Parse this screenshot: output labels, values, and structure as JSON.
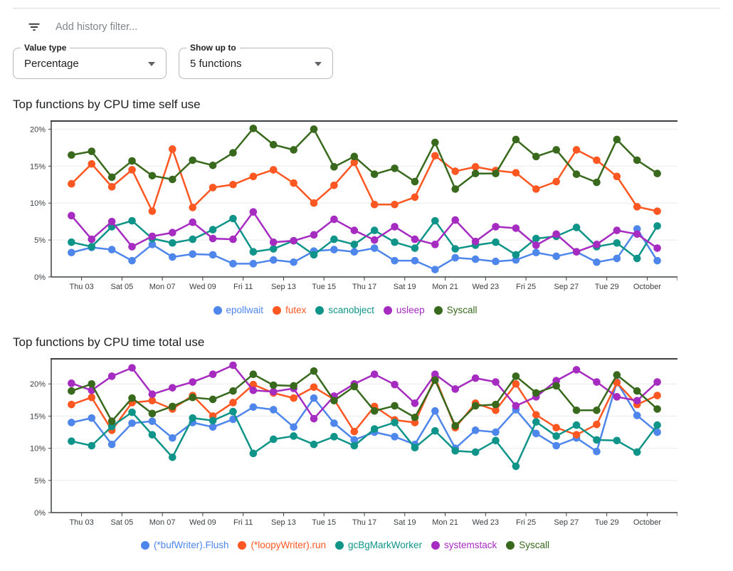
{
  "header": {
    "filter_placeholder": "Add history filter..."
  },
  "controls": {
    "value_type": {
      "label": "Value type",
      "value": "Percentage"
    },
    "show_up_to": {
      "label": "Show up to",
      "value": "5 functions"
    }
  },
  "chart_data": [
    {
      "type": "line",
      "title": "Top functions by CPU time self use",
      "xlabel": "",
      "ylabel": "",
      "grid": true,
      "legend_position": "bottom",
      "n_points": 30,
      "x_tick_labels": [
        "Thu 03",
        "Sat 05",
        "Mon 07",
        "Wed 09",
        "Fri 11",
        "Sep 13",
        "Tue 15",
        "Thu 17",
        "Sat 19",
        "Mon 21",
        "Wed 23",
        "Fri 25",
        "Sep 27",
        "Tue 29",
        "October"
      ],
      "yticks": [
        0,
        5,
        10,
        15,
        20
      ],
      "ytick_labels": [
        "0%",
        "5%",
        "10%",
        "15%",
        "20%"
      ],
      "ylim": [
        0,
        21.1
      ],
      "series": [
        {
          "name": "epollwait",
          "color": "#4e86ec",
          "values": [
            3.3,
            4.0,
            3.7,
            2.2,
            4.4,
            2.7,
            3.1,
            3.0,
            1.8,
            1.8,
            2.3,
            2.0,
            3.5,
            3.7,
            3.4,
            3.9,
            2.2,
            2.2,
            1.0,
            2.6,
            2.4,
            2.1,
            2.3,
            3.3,
            2.8,
            3.4,
            2.0,
            2.5,
            6.5,
            2.2
          ]
        },
        {
          "name": "futex",
          "color": "#ff5722",
          "values": [
            12.6,
            15.3,
            12.2,
            14.5,
            8.9,
            17.3,
            9.4,
            12.1,
            12.5,
            13.6,
            14.5,
            12.7,
            10.0,
            12.4,
            15.5,
            9.8,
            9.8,
            10.8,
            16.4,
            14.3,
            14.9,
            14.4,
            14.1,
            11.9,
            12.9,
            17.2,
            15.8,
            13.6,
            9.5,
            8.9
          ]
        },
        {
          "name": "scanobject",
          "color": "#0e9488",
          "values": [
            4.7,
            4.1,
            6.8,
            7.6,
            5.2,
            4.6,
            5.1,
            6.4,
            7.9,
            3.4,
            3.8,
            4.9,
            3.0,
            5.1,
            4.4,
            6.3,
            4.7,
            3.9,
            7.6,
            3.8,
            4.3,
            4.7,
            3.0,
            5.2,
            5.5,
            6.7,
            4.1,
            4.6,
            2.5,
            6.9
          ]
        },
        {
          "name": "usleep",
          "color": "#a62bc1",
          "values": [
            8.3,
            5.1,
            7.5,
            4.1,
            5.5,
            6.0,
            7.4,
            5.2,
            5.1,
            8.8,
            4.7,
            4.9,
            5.7,
            7.8,
            6.3,
            5.0,
            6.8,
            5.1,
            4.4,
            7.7,
            4.8,
            6.8,
            6.6,
            4.3,
            5.8,
            3.4,
            4.4,
            6.3,
            5.8,
            3.9
          ]
        },
        {
          "name": "Syscall",
          "color": "#38691c",
          "values": [
            16.5,
            17.0,
            13.5,
            15.7,
            13.7,
            13.2,
            15.8,
            15.1,
            16.8,
            20.1,
            17.9,
            17.2,
            20.0,
            14.9,
            16.3,
            13.9,
            14.7,
            12.9,
            18.2,
            11.9,
            14.0,
            14.0,
            18.6,
            16.3,
            17.2,
            13.9,
            12.8,
            18.6,
            15.8,
            14.0
          ]
        }
      ]
    },
    {
      "type": "line",
      "title": "Top functions by CPU time total use",
      "xlabel": "",
      "ylabel": "",
      "grid": true,
      "legend_position": "bottom",
      "n_points": 30,
      "x_tick_labels": [
        "Thu 03",
        "Sat 05",
        "Mon 07",
        "Wed 09",
        "Fri 11",
        "Sep 13",
        "Tue 15",
        "Thu 17",
        "Sat 19",
        "Mon 21",
        "Wed 23",
        "Fri 25",
        "Sep 27",
        "Tue 29",
        "October"
      ],
      "yticks": [
        0,
        5,
        10,
        15,
        20
      ],
      "ytick_labels": [
        "0%",
        "5%",
        "10%",
        "15%",
        "20%"
      ],
      "ylim": [
        0,
        23.9
      ],
      "series": [
        {
          "name": "(*bufWriter).Flush",
          "color": "#4e86ec",
          "values": [
            14.0,
            14.7,
            10.6,
            13.9,
            14.2,
            11.6,
            14.0,
            13.3,
            14.5,
            16.4,
            16.0,
            13.3,
            17.8,
            13.9,
            11.3,
            12.5,
            11.8,
            10.6,
            15.8,
            10.0,
            12.8,
            12.5,
            16.0,
            12.3,
            10.4,
            11.6,
            9.5,
            20.3,
            15.1,
            12.5
          ]
        },
        {
          "name": "(*loopyWriter).run",
          "color": "#ff5722",
          "values": [
            16.8,
            17.9,
            12.8,
            17.1,
            17.4,
            16.1,
            18.2,
            15.0,
            17.1,
            19.9,
            18.6,
            17.8,
            19.5,
            17.6,
            12.6,
            16.5,
            14.4,
            14.0,
            21.0,
            13.2,
            17.0,
            15.9,
            20.0,
            15.2,
            13.2,
            12.1,
            13.7,
            20.2,
            16.8,
            18.2
          ]
        },
        {
          "name": "gcBgMarkWorker",
          "color": "#0e9488",
          "values": [
            11.1,
            10.4,
            13.4,
            15.6,
            12.1,
            8.6,
            14.7,
            14.3,
            15.7,
            9.2,
            11.4,
            11.9,
            10.6,
            11.8,
            10.4,
            13.0,
            14.0,
            10.1,
            12.7,
            9.6,
            9.4,
            11.2,
            7.2,
            14.1,
            11.9,
            13.6,
            11.3,
            11.2,
            9.4,
            13.6
          ]
        },
        {
          "name": "systemstack",
          "color": "#a62bc1",
          "values": [
            20.1,
            19.0,
            21.2,
            22.5,
            18.4,
            19.4,
            20.3,
            21.5,
            22.9,
            19.0,
            18.8,
            19.3,
            14.6,
            18.1,
            20.0,
            21.5,
            19.9,
            17.0,
            21.5,
            19.2,
            20.9,
            20.3,
            16.6,
            18.0,
            20.5,
            22.2,
            20.3,
            18.0,
            17.4,
            20.3
          ]
        },
        {
          "name": "Syscall",
          "color": "#38691c",
          "values": [
            18.9,
            20.0,
            14.2,
            17.8,
            15.4,
            16.5,
            17.9,
            17.6,
            18.9,
            21.5,
            19.8,
            19.7,
            22.0,
            17.4,
            19.6,
            15.8,
            16.6,
            14.8,
            20.6,
            13.5,
            16.6,
            16.8,
            21.2,
            18.6,
            19.7,
            15.9,
            15.9,
            21.4,
            18.9,
            16.1
          ]
        }
      ]
    }
  ]
}
